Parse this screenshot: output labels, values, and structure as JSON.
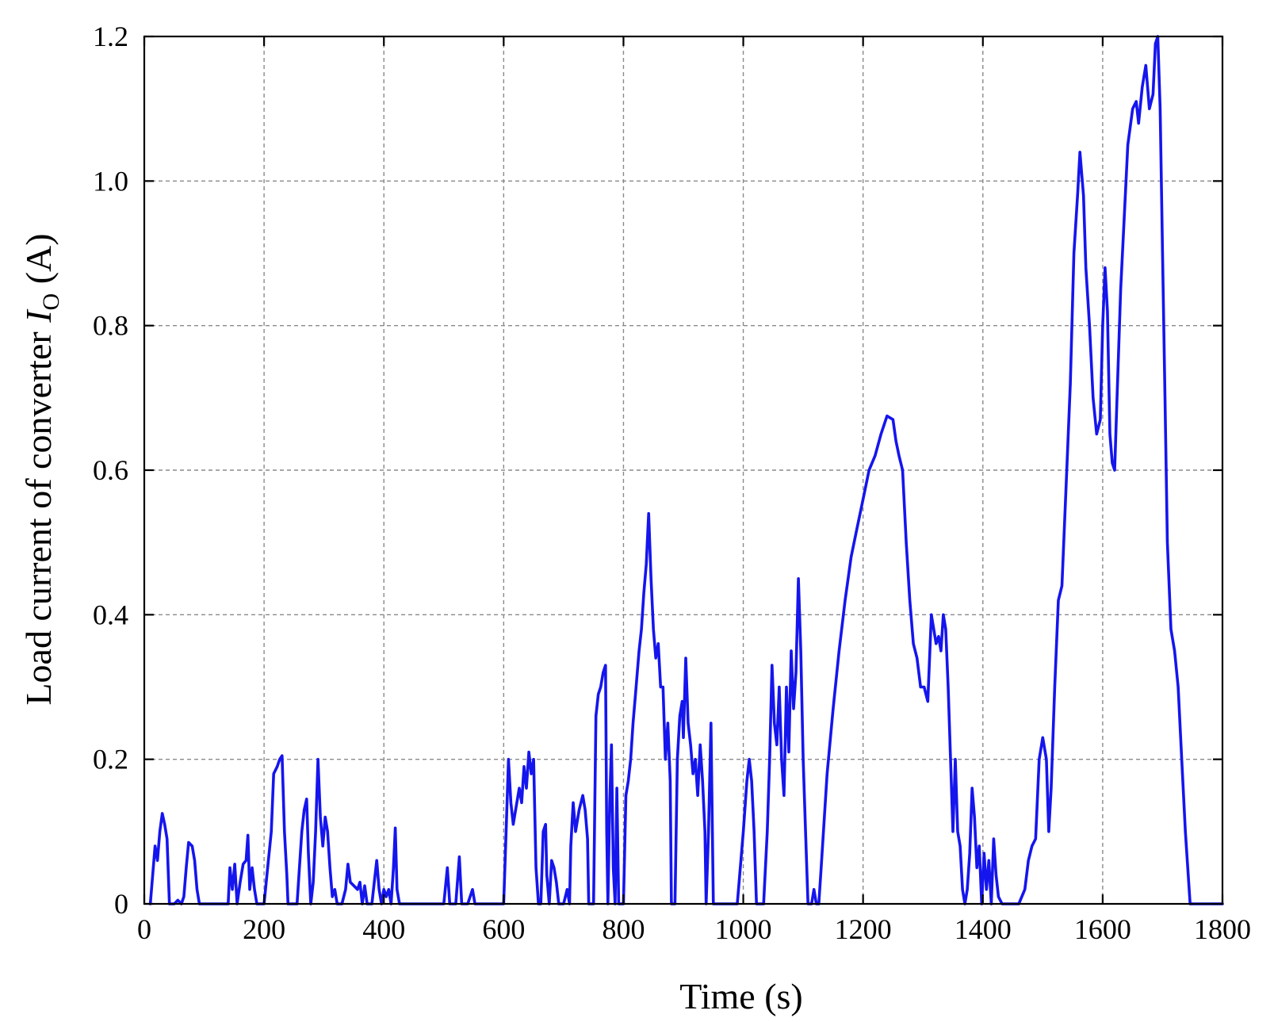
{
  "chart_data": {
    "type": "line",
    "title": "",
    "xlabel": "Time (s)",
    "ylabel_prefix": "Load current of converter ",
    "ylabel_symbol": "I",
    "ylabel_subscript": "O",
    "ylabel_unit": " (A)",
    "xlim": [
      0,
      1800
    ],
    "ylim": [
      0,
      1.2
    ],
    "xticks": [
      0,
      200,
      400,
      600,
      800,
      1000,
      1200,
      1400,
      1600,
      1800
    ],
    "xtick_labels": [
      "0",
      "200",
      "400",
      "600",
      "800",
      "1000",
      "1200",
      "1400",
      "1600",
      "1800"
    ],
    "yticks": [
      0,
      0.2,
      0.4,
      0.6,
      0.8,
      1.0,
      1.2
    ],
    "ytick_labels": [
      "0",
      "0.2",
      "0.4",
      "0.6",
      "0.8",
      "1.0",
      "1.2"
    ],
    "grid": true,
    "line_color": "#1515ee",
    "series": [
      {
        "points": [
          [
            10,
            0
          ],
          [
            14,
            0.04
          ],
          [
            18,
            0.08
          ],
          [
            22,
            0.06
          ],
          [
            26,
            0.1
          ],
          [
            30,
            0.125
          ],
          [
            34,
            0.11
          ],
          [
            38,
            0.09
          ],
          [
            42,
            0
          ],
          [
            50,
            0
          ],
          [
            56,
            0.005
          ],
          [
            62,
            0
          ],
          [
            66,
            0.01
          ],
          [
            70,
            0.05
          ],
          [
            74,
            0.085
          ],
          [
            80,
            0.08
          ],
          [
            84,
            0.06
          ],
          [
            88,
            0.02
          ],
          [
            92,
            0
          ],
          [
            100,
            0
          ],
          [
            140,
            0
          ],
          [
            143,
            0.05
          ],
          [
            147,
            0.02
          ],
          [
            151,
            0.055
          ],
          [
            155,
            0
          ],
          [
            160,
            0.03
          ],
          [
            165,
            0.055
          ],
          [
            170,
            0.06
          ],
          [
            173,
            0.095
          ],
          [
            176,
            0.02
          ],
          [
            180,
            0.05
          ],
          [
            184,
            0.02
          ],
          [
            188,
            0
          ],
          [
            200,
            0
          ],
          [
            206,
            0.05
          ],
          [
            212,
            0.1
          ],
          [
            216,
            0.18
          ],
          [
            222,
            0.19
          ],
          [
            226,
            0.2
          ],
          [
            230,
            0.205
          ],
          [
            234,
            0.1
          ],
          [
            238,
            0.04
          ],
          [
            240,
            0
          ],
          [
            255,
            0
          ],
          [
            259,
            0.05
          ],
          [
            263,
            0.1
          ],
          [
            267,
            0.13
          ],
          [
            271,
            0.145
          ],
          [
            274,
            0.07
          ],
          [
            278,
            0
          ],
          [
            282,
            0.03
          ],
          [
            286,
            0.1
          ],
          [
            290,
            0.2
          ],
          [
            294,
            0.12
          ],
          [
            298,
            0.08
          ],
          [
            302,
            0.12
          ],
          [
            306,
            0.1
          ],
          [
            310,
            0.05
          ],
          [
            314,
            0.01
          ],
          [
            318,
            0.02
          ],
          [
            322,
            0
          ],
          [
            330,
            0
          ],
          [
            336,
            0.02
          ],
          [
            340,
            0.055
          ],
          [
            344,
            0.03
          ],
          [
            350,
            0.025
          ],
          [
            356,
            0.02
          ],
          [
            360,
            0.03
          ],
          [
            364,
            0
          ],
          [
            368,
            0.025
          ],
          [
            372,
            0
          ],
          [
            380,
            0
          ],
          [
            384,
            0.03
          ],
          [
            388,
            0.06
          ],
          [
            392,
            0.02
          ],
          [
            396,
            0
          ],
          [
            400,
            0.02
          ],
          [
            404,
            0.01
          ],
          [
            408,
            0.02
          ],
          [
            412,
            0
          ],
          [
            416,
            0.05
          ],
          [
            419,
            0.105
          ],
          [
            422,
            0.02
          ],
          [
            426,
            0
          ],
          [
            440,
            0
          ],
          [
            500,
            0
          ],
          [
            506,
            0.05
          ],
          [
            510,
            0
          ],
          [
            520,
            0
          ],
          [
            526,
            0.065
          ],
          [
            530,
            0
          ],
          [
            540,
            0
          ],
          [
            548,
            0.02
          ],
          [
            552,
            0
          ],
          [
            560,
            0
          ],
          [
            600,
            0
          ],
          [
            604,
            0.1
          ],
          [
            608,
            0.2
          ],
          [
            612,
            0.14
          ],
          [
            616,
            0.11
          ],
          [
            620,
            0.13
          ],
          [
            626,
            0.16
          ],
          [
            630,
            0.14
          ],
          [
            634,
            0.19
          ],
          [
            638,
            0.16
          ],
          [
            642,
            0.21
          ],
          [
            646,
            0.18
          ],
          [
            650,
            0.2
          ],
          [
            654,
            0.05
          ],
          [
            658,
            0
          ],
          [
            662,
            0
          ],
          [
            666,
            0.1
          ],
          [
            670,
            0.11
          ],
          [
            672,
            0.04
          ],
          [
            676,
            0
          ],
          [
            680,
            0.06
          ],
          [
            684,
            0.05
          ],
          [
            688,
            0.03
          ],
          [
            692,
            0
          ],
          [
            700,
            0
          ],
          [
            706,
            0.02
          ],
          [
            710,
            0
          ],
          [
            712,
            0.08
          ],
          [
            716,
            0.14
          ],
          [
            720,
            0.1
          ],
          [
            726,
            0.13
          ],
          [
            732,
            0.15
          ],
          [
            736,
            0.13
          ],
          [
            740,
            0.09
          ],
          [
            742,
            0
          ],
          [
            750,
            0
          ],
          [
            754,
            0.26
          ],
          [
            758,
            0.29
          ],
          [
            762,
            0.3
          ],
          [
            766,
            0.32
          ],
          [
            770,
            0.33
          ],
          [
            772,
            0.1
          ],
          [
            774,
            0
          ],
          [
            777,
            0.14
          ],
          [
            780,
            0.22
          ],
          [
            783,
            0.05
          ],
          [
            786,
            0
          ],
          [
            789,
            0.16
          ],
          [
            792,
            0
          ],
          [
            800,
            0
          ],
          [
            804,
            0.15
          ],
          [
            808,
            0.17
          ],
          [
            812,
            0.2
          ],
          [
            816,
            0.25
          ],
          [
            820,
            0.29
          ],
          [
            826,
            0.35
          ],
          [
            830,
            0.38
          ],
          [
            834,
            0.43
          ],
          [
            838,
            0.47
          ],
          [
            842,
            0.54
          ],
          [
            846,
            0.45
          ],
          [
            850,
            0.38
          ],
          [
            854,
            0.34
          ],
          [
            858,
            0.36
          ],
          [
            862,
            0.3
          ],
          [
            866,
            0.3
          ],
          [
            870,
            0.2
          ],
          [
            874,
            0.25
          ],
          [
            878,
            0.17
          ],
          [
            880,
            0
          ],
          [
            886,
            0
          ],
          [
            890,
            0.2
          ],
          [
            894,
            0.26
          ],
          [
            898,
            0.28
          ],
          [
            900,
            0.23
          ],
          [
            904,
            0.34
          ],
          [
            908,
            0.25
          ],
          [
            912,
            0.22
          ],
          [
            916,
            0.18
          ],
          [
            920,
            0.2
          ],
          [
            924,
            0.15
          ],
          [
            928,
            0.22
          ],
          [
            932,
            0.17
          ],
          [
            936,
            0.1
          ],
          [
            938,
            0
          ],
          [
            942,
            0.1
          ],
          [
            946,
            0.25
          ],
          [
            950,
            0
          ],
          [
            960,
            0
          ],
          [
            990,
            0
          ],
          [
            1000,
            0.1
          ],
          [
            1006,
            0.17
          ],
          [
            1010,
            0.2
          ],
          [
            1014,
            0.17
          ],
          [
            1018,
            0.1
          ],
          [
            1022,
            0
          ],
          [
            1034,
            0
          ],
          [
            1040,
            0.1
          ],
          [
            1044,
            0.2
          ],
          [
            1048,
            0.33
          ],
          [
            1052,
            0.25
          ],
          [
            1056,
            0.22
          ],
          [
            1060,
            0.3
          ],
          [
            1064,
            0.2
          ],
          [
            1068,
            0.15
          ],
          [
            1072,
            0.3
          ],
          [
            1076,
            0.21
          ],
          [
            1080,
            0.35
          ],
          [
            1084,
            0.27
          ],
          [
            1088,
            0.32
          ],
          [
            1092,
            0.45
          ],
          [
            1096,
            0.35
          ],
          [
            1100,
            0.2
          ],
          [
            1104,
            0.1
          ],
          [
            1108,
            0
          ],
          [
            1114,
            0
          ],
          [
            1118,
            0.02
          ],
          [
            1122,
            0
          ],
          [
            1126,
            0
          ],
          [
            1130,
            0.05
          ],
          [
            1140,
            0.18
          ],
          [
            1150,
            0.27
          ],
          [
            1160,
            0.35
          ],
          [
            1170,
            0.42
          ],
          [
            1180,
            0.48
          ],
          [
            1190,
            0.52
          ],
          [
            1200,
            0.56
          ],
          [
            1210,
            0.6
          ],
          [
            1220,
            0.62
          ],
          [
            1230,
            0.65
          ],
          [
            1240,
            0.675
          ],
          [
            1250,
            0.67
          ],
          [
            1255,
            0.64
          ],
          [
            1260,
            0.62
          ],
          [
            1266,
            0.6
          ],
          [
            1272,
            0.5
          ],
          [
            1278,
            0.42
          ],
          [
            1284,
            0.36
          ],
          [
            1290,
            0.34
          ],
          [
            1296,
            0.3
          ],
          [
            1302,
            0.3
          ],
          [
            1308,
            0.28
          ],
          [
            1314,
            0.4
          ],
          [
            1318,
            0.38
          ],
          [
            1322,
            0.36
          ],
          [
            1326,
            0.37
          ],
          [
            1330,
            0.35
          ],
          [
            1334,
            0.4
          ],
          [
            1338,
            0.38
          ],
          [
            1342,
            0.3
          ],
          [
            1346,
            0.2
          ],
          [
            1350,
            0.1
          ],
          [
            1354,
            0.2
          ],
          [
            1358,
            0.1
          ],
          [
            1362,
            0.08
          ],
          [
            1366,
            0.02
          ],
          [
            1370,
            0
          ],
          [
            1374,
            0.02
          ],
          [
            1378,
            0.07
          ],
          [
            1382,
            0.16
          ],
          [
            1386,
            0.12
          ],
          [
            1390,
            0.05
          ],
          [
            1394,
            0.08
          ],
          [
            1398,
            0
          ],
          [
            1402,
            0.07
          ],
          [
            1406,
            0.02
          ],
          [
            1410,
            0.06
          ],
          [
            1414,
            0
          ],
          [
            1418,
            0.09
          ],
          [
            1422,
            0.04
          ],
          [
            1426,
            0.01
          ],
          [
            1432,
            0
          ],
          [
            1460,
            0
          ],
          [
            1470,
            0.02
          ],
          [
            1476,
            0.06
          ],
          [
            1482,
            0.08
          ],
          [
            1488,
            0.09
          ],
          [
            1494,
            0.2
          ],
          [
            1500,
            0.23
          ],
          [
            1506,
            0.2
          ],
          [
            1510,
            0.1
          ],
          [
            1514,
            0.16
          ],
          [
            1520,
            0.3
          ],
          [
            1526,
            0.42
          ],
          [
            1532,
            0.44
          ],
          [
            1540,
            0.6
          ],
          [
            1546,
            0.72
          ],
          [
            1552,
            0.9
          ],
          [
            1558,
            0.98
          ],
          [
            1562,
            1.04
          ],
          [
            1568,
            0.98
          ],
          [
            1572,
            0.88
          ],
          [
            1578,
            0.8
          ],
          [
            1584,
            0.7
          ],
          [
            1590,
            0.65
          ],
          [
            1596,
            0.67
          ],
          [
            1600,
            0.8
          ],
          [
            1604,
            0.88
          ],
          [
            1608,
            0.82
          ],
          [
            1612,
            0.65
          ],
          [
            1616,
            0.61
          ],
          [
            1620,
            0.6
          ],
          [
            1624,
            0.7
          ],
          [
            1630,
            0.85
          ],
          [
            1636,
            0.95
          ],
          [
            1642,
            1.05
          ],
          [
            1650,
            1.1
          ],
          [
            1656,
            1.11
          ],
          [
            1660,
            1.08
          ],
          [
            1666,
            1.13
          ],
          [
            1672,
            1.16
          ],
          [
            1678,
            1.1
          ],
          [
            1684,
            1.12
          ],
          [
            1688,
            1.19
          ],
          [
            1692,
            1.2
          ],
          [
            1696,
            1.1
          ],
          [
            1700,
            0.9
          ],
          [
            1704,
            0.7
          ],
          [
            1708,
            0.5
          ],
          [
            1714,
            0.38
          ],
          [
            1720,
            0.35
          ],
          [
            1726,
            0.3
          ],
          [
            1732,
            0.2
          ],
          [
            1738,
            0.1
          ],
          [
            1742,
            0.05
          ],
          [
            1746,
            0
          ],
          [
            1800,
            0
          ]
        ]
      }
    ]
  }
}
